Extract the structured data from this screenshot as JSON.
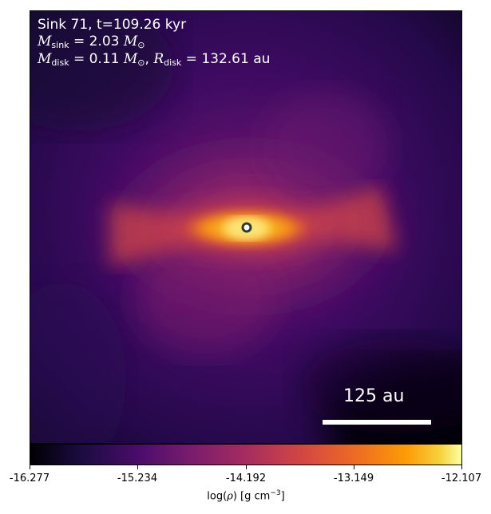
{
  "annotation": {
    "line1": "Sink 71, t=109.26 kyr",
    "msink_symbol": "M",
    "msink_sub": "sink",
    "msink_value": " = 2.03",
    "mdisk_symbol": "M",
    "mdisk_sub": "disk",
    "mdisk_value": " = 0.11",
    "rdisk_symbol": "R",
    "rdisk_sub": "disk",
    "rdisk_value": " = 132.61 au",
    "solar_unit": "M",
    "solar_sub": "⊙"
  },
  "scale_bar": {
    "label": "125 au"
  },
  "colorbar": {
    "label_prefix": "log(",
    "label_rho": "ρ",
    "label_suffix": ") [g cm",
    "label_exp": "−3",
    "label_close": "]",
    "ticks": [
      "-16.277",
      "-15.234",
      "-14.192",
      "-13.149",
      "-12.107"
    ],
    "colormap": "inferno"
  },
  "colors": {
    "sink_marker_fill": "#ffffff",
    "sink_marker_stroke": "#2f3a2f"
  }
}
